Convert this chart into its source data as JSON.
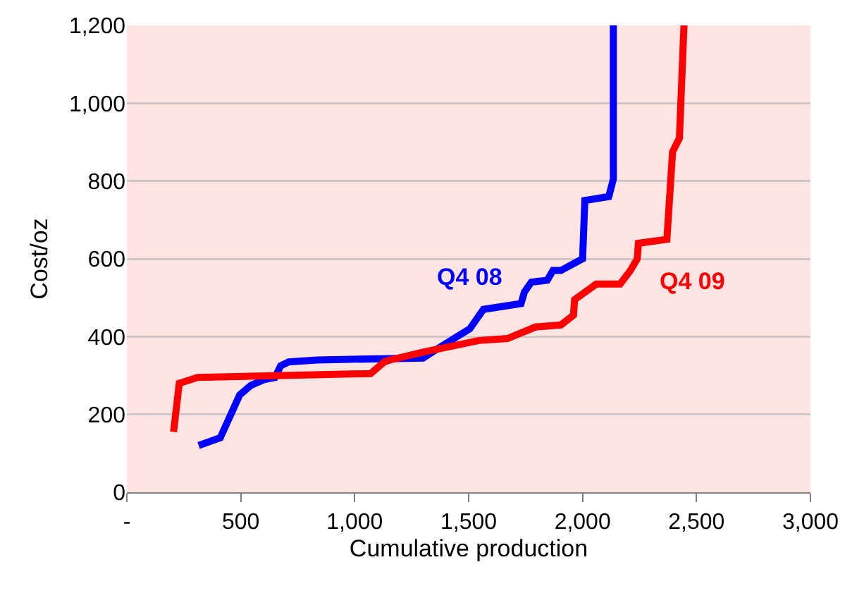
{
  "chart_data": {
    "type": "line",
    "xlabel": "Cumulative production",
    "ylabel": "Cost/oz",
    "xlim": [
      0,
      3000
    ],
    "xticks": [
      {
        "value": 0,
        "label": "-"
      },
      500,
      {
        "value": 1000,
        "label": "1,000"
      },
      {
        "value": 1500,
        "label": "1,500"
      },
      {
        "value": 2000,
        "label": "2,000"
      },
      {
        "value": 2500,
        "label": "2,500"
      },
      {
        "value": 3000,
        "label": "3,000"
      }
    ],
    "ylim": [
      0,
      1200
    ],
    "yticks": [
      0,
      200,
      400,
      600,
      800,
      {
        "value": 1000,
        "label": "1,000"
      },
      {
        "value": 1200,
        "label": "1,200"
      }
    ],
    "grid": "y",
    "legend": false,
    "marker": "none",
    "line_style": "solid",
    "series": [
      {
        "name": "Q4 08",
        "color": "#0000ff",
        "x": [
          315,
          410,
          495,
          545,
          605,
          650,
          675,
          710,
          835,
          1300,
          1380,
          1505,
          1565,
          1730,
          1745,
          1775,
          1845,
          1870,
          1905,
          2000,
          2010,
          2115,
          2135,
          2135
        ],
        "values": [
          120,
          140,
          250,
          275,
          290,
          295,
          325,
          335,
          340,
          345,
          375,
          420,
          470,
          485,
          515,
          540,
          545,
          570,
          570,
          600,
          750,
          760,
          805,
          1200
        ]
      },
      {
        "name": "Q4 09",
        "color": "#ff0000",
        "x": [
          205,
          230,
          310,
          1070,
          1130,
          1155,
          1300,
          1545,
          1670,
          1795,
          1905,
          1960,
          1965,
          2060,
          2165,
          2210,
          2240,
          2245,
          2370,
          2395,
          2425,
          2445
        ],
        "values": [
          155,
          280,
          295,
          305,
          335,
          340,
          360,
          390,
          395,
          425,
          430,
          455,
          495,
          535,
          535,
          570,
          600,
          640,
          650,
          875,
          910,
          1200
        ]
      }
    ]
  }
}
